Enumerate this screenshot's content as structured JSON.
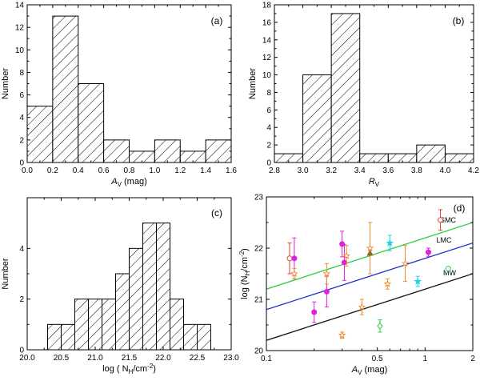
{
  "chart_data": [
    {
      "type": "bar",
      "id": "a",
      "panel_label": "(a)",
      "bin_edges": [
        0.0,
        0.2,
        0.4,
        0.6,
        0.8,
        1.0,
        1.2,
        1.4,
        1.6
      ],
      "values": [
        5,
        13,
        7,
        2,
        1,
        2,
        1,
        2
      ],
      "xlim": [
        0.0,
        1.6
      ],
      "ylim": [
        0,
        14
      ],
      "xticks": [
        "0.0",
        "0.2",
        "0.4",
        "0.6",
        "0.8",
        "1.0",
        "1.2",
        "1.4",
        "1.6"
      ],
      "yticks": [
        "0",
        "2",
        "4",
        "6",
        "8",
        "10",
        "12",
        "14"
      ],
      "xlabel": "A",
      "xlabel_sub": "V",
      "xlabel_suffix": " (mag)",
      "ylabel": "Number"
    },
    {
      "type": "bar",
      "id": "b",
      "panel_label": "(b)",
      "bin_edges": [
        2.8,
        3.0,
        3.2,
        3.4,
        3.6,
        3.8,
        4.0,
        4.2
      ],
      "values": [
        1,
        10,
        17,
        1,
        1,
        2,
        1
      ],
      "xlim": [
        2.8,
        4.2
      ],
      "ylim": [
        0,
        18
      ],
      "xticks": [
        "2.8",
        "3.0",
        "3.2",
        "3.4",
        "3.6",
        "3.8",
        "4.0",
        "4.2"
      ],
      "yticks": [
        "0",
        "2",
        "4",
        "6",
        "8",
        "10",
        "12",
        "14",
        "16",
        "18"
      ],
      "xlabel": "R",
      "xlabel_sub": "V",
      "ylabel": "Number"
    },
    {
      "type": "bar",
      "id": "c",
      "panel_label": "(c)",
      "bin_edges": [
        20.3,
        20.5,
        20.7,
        20.9,
        21.1,
        21.3,
        21.5,
        21.7,
        21.9,
        22.1,
        22.3,
        22.5,
        22.7
      ],
      "values": [
        1,
        1,
        2,
        2,
        2,
        3,
        4,
        5,
        5,
        2,
        1,
        1
      ],
      "xlim": [
        20.0,
        23.0
      ],
      "ylim": [
        0,
        6
      ],
      "xticks": [
        "20.0",
        "20.5",
        "21.0",
        "21.5",
        "22.0",
        "22.5",
        "23.0"
      ],
      "yticks": [
        "0",
        "2",
        "4"
      ],
      "xlabel": "log ( N",
      "xlabel_sub": "H",
      "xlabel_suffix": "/cm",
      "xlabel_sup": "-2",
      "xlabel_end": ")",
      "ylabel": "Number"
    },
    {
      "type": "scatter",
      "id": "d",
      "panel_label": "(d)",
      "x_scale": "log",
      "xlim": [
        0.1,
        2
      ],
      "ylim": [
        20,
        23
      ],
      "xticks": [
        "0.1",
        "0.5",
        "1",
        "2"
      ],
      "xtick_values": [
        0.1,
        0.5,
        1,
        2
      ],
      "yticks": [
        "20",
        "21",
        "22",
        "23"
      ],
      "xlabel": "A",
      "xlabel_sub": "V",
      "xlabel_suffix": " (mag)",
      "ylabel": "log (N",
      "ylabel_sub": "H",
      "ylabel_suffix": "/cm",
      "ylabel_sup": "-2",
      "ylabel_end": ")",
      "lines": [
        {
          "name": "SMC",
          "color": "#2ecc40",
          "points": [
            [
              0.1,
              21.2
            ],
            [
              2,
              22.5
            ]
          ]
        },
        {
          "name": "LMC",
          "color": "#1f2fd0",
          "points": [
            [
              0.1,
              20.8
            ],
            [
              2,
              22.1
            ]
          ]
        },
        {
          "name": "MW",
          "color": "#111111",
          "points": [
            [
              0.1,
              20.2
            ],
            [
              2,
              21.5
            ]
          ]
        }
      ],
      "points": [
        {
          "x": 0.14,
          "y": 21.8,
          "yerr": 0.3,
          "marker": "circle-open",
          "color": "#e34234"
        },
        {
          "x": 1.25,
          "y": 22.55,
          "yerr": 0.2,
          "marker": "circle-open",
          "color": "#e34234"
        },
        {
          "x": 0.15,
          "y": 21.8,
          "yerr": 0.4,
          "marker": "circle",
          "color": "#e020e0"
        },
        {
          "x": 0.2,
          "y": 20.75,
          "yerr": 0.2,
          "marker": "circle",
          "color": "#e020e0"
        },
        {
          "x": 0.24,
          "y": 21.15,
          "yerr": 0.3,
          "marker": "circle",
          "color": "#e020e0"
        },
        {
          "x": 0.3,
          "y": 22.08,
          "yerr": 0.25,
          "marker": "circle",
          "color": "#e020e0"
        },
        {
          "x": 0.31,
          "y": 21.72,
          "yerr": 0.35,
          "marker": "circle",
          "color": "#e020e0"
        },
        {
          "x": 1.05,
          "y": 21.92,
          "yerr": 0.08,
          "marker": "circle",
          "color": "#e020e0"
        },
        {
          "x": 0.15,
          "y": 21.5,
          "yerr": 0.1,
          "marker": "star-open",
          "color": "#f08a30"
        },
        {
          "x": 0.24,
          "y": 21.5,
          "yerr": 0.2,
          "marker": "star-open",
          "color": "#f08a30"
        },
        {
          "x": 0.3,
          "y": 20.3,
          "yerr": 0.06,
          "marker": "star-open",
          "color": "#f08a30"
        },
        {
          "x": 0.32,
          "y": 21.85,
          "yerr": 0.2,
          "marker": "star-open",
          "color": "#f08a30"
        },
        {
          "x": 0.4,
          "y": 20.85,
          "yerr": 0.15,
          "marker": "star-open",
          "color": "#f08a30"
        },
        {
          "x": 0.45,
          "y": 22.0,
          "yerr": 0.5,
          "marker": "star-open",
          "color": "#f08a30"
        },
        {
          "x": 0.58,
          "y": 21.3,
          "yerr": 0.1,
          "marker": "star-open",
          "color": "#f08a30"
        },
        {
          "x": 0.75,
          "y": 21.7,
          "yerr": 0.35,
          "marker": "star-open",
          "color": "#f08a30"
        },
        {
          "x": 0.45,
          "y": 21.9,
          "yerr": 0.0,
          "marker": "triangle",
          "color": "#8b6d1c"
        },
        {
          "x": 0.6,
          "y": 22.1,
          "yerr": 0.15,
          "marker": "star",
          "color": "#22d3e8"
        },
        {
          "x": 0.9,
          "y": 21.35,
          "yerr": 0.1,
          "marker": "star",
          "color": "#22d3e8"
        },
        {
          "x": 0.52,
          "y": 20.48,
          "yerr": 0.12,
          "marker": "diamond-open",
          "color": "#2ecc40"
        },
        {
          "x": 1.4,
          "y": 21.6,
          "yerr": 0.0,
          "marker": "circle-open",
          "color": "#2ecc40"
        }
      ]
    }
  ]
}
